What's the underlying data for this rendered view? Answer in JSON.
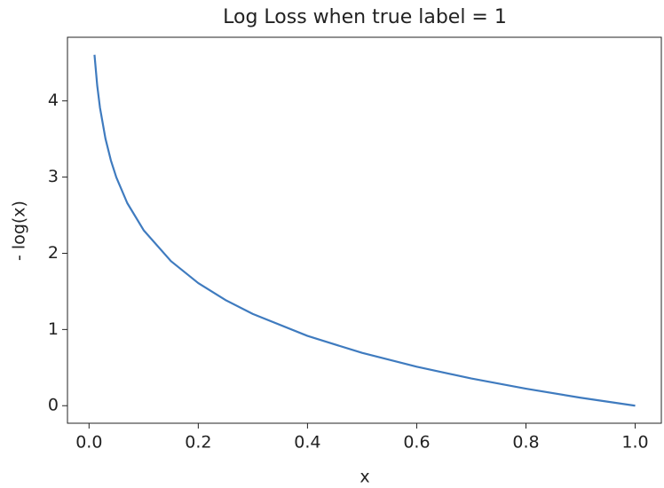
{
  "chart_data": {
    "type": "line",
    "title": "Log Loss when true label = 1",
    "x_label": "x",
    "y_label": "- log(x)",
    "x": [
      0.01,
      0.015,
      0.02,
      0.03,
      0.04,
      0.05,
      0.07,
      0.1,
      0.15,
      0.2,
      0.25,
      0.3,
      0.4,
      0.5,
      0.6,
      0.7,
      0.8,
      0.9,
      1.0
    ],
    "values": [
      4.605,
      4.2,
      3.912,
      3.507,
      3.219,
      2.996,
      2.659,
      2.303,
      1.897,
      1.609,
      1.386,
      1.204,
      0.916,
      0.693,
      0.511,
      0.357,
      0.223,
      0.105,
      0
    ],
    "color": "#3f7bbf",
    "xlim": [
      -0.0395,
      1.0495
    ],
    "ylim": [
      -0.23,
      4.835
    ],
    "xticks": [
      {
        "value": 0,
        "label": "0.0"
      },
      0.2,
      0.4,
      0.6,
      0.8,
      {
        "value": 1,
        "label": "1.0"
      }
    ],
    "yticks": [
      0,
      1,
      2,
      3,
      4
    ]
  }
}
